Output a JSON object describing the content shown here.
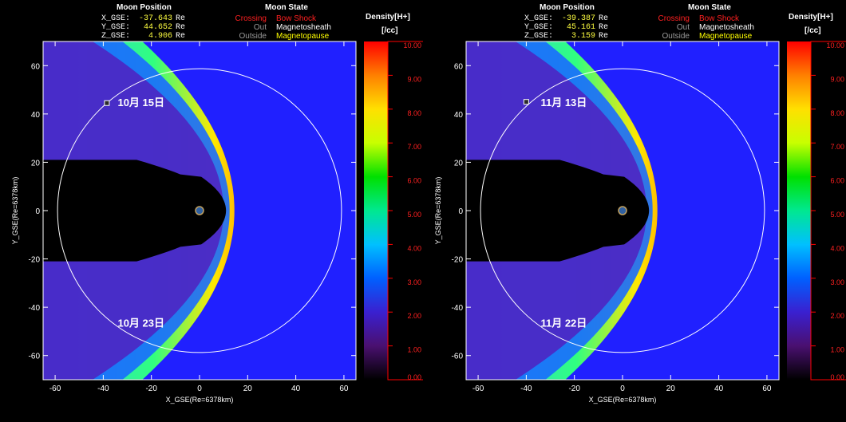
{
  "panels": [
    {
      "header": {
        "moon_position_title": "Moon Position",
        "moon_state_title": "Moon State",
        "density_title": "Density[H+]",
        "density_unit": "[/cc]",
        "x_label": "X_GSE:",
        "x_value": "-37.643",
        "x_unit": "Re",
        "y_label": "Y_GSE:",
        "y_value": "44.652",
        "y_unit": "Re",
        "z_label": "Z_GSE:",
        "z_value": "4.906",
        "z_unit": "Re",
        "state_rows": [
          {
            "key": "Crossing",
            "value": "Bow Shock",
            "key_color": "#ff2020",
            "value_color": "#ff2020"
          },
          {
            "key": "Out",
            "value": "Magnetosheath",
            "key_color": "#9a9a9a",
            "value_color": "#ffffff"
          },
          {
            "key": "Outside",
            "value": "Magnetopause",
            "key_color": "#9a9a9a",
            "value_color": "#ffff00"
          }
        ]
      },
      "annotations": {
        "upper": "10月 15日",
        "lower": "10月 23日"
      },
      "moon_marker": {
        "x": -38.5,
        "y": 44.5
      }
    },
    {
      "header": {
        "moon_position_title": "Moon Position",
        "moon_state_title": "Moon State",
        "density_title": "Density[H+]",
        "density_unit": "[/cc]",
        "x_label": "X_GSE:",
        "x_value": "-39.387",
        "x_unit": "Re",
        "y_label": "Y_GSE:",
        "y_value": "45.161",
        "y_unit": "Re",
        "z_label": "Z_GSE:",
        "z_value": "3.159",
        "z_unit": "Re",
        "state_rows": [
          {
            "key": "Crossing",
            "value": "Bow Shock",
            "key_color": "#ff2020",
            "value_color": "#ff2020"
          },
          {
            "key": "Out",
            "value": "Magnetosheath",
            "key_color": "#9a9a9a",
            "value_color": "#ffffff"
          },
          {
            "key": "Outside",
            "value": "Magnetopause",
            "key_color": "#9a9a9a",
            "value_color": "#ffff00"
          }
        ]
      },
      "annotations": {
        "upper": "11月 13日",
        "lower": "11月 22日"
      },
      "moon_marker": {
        "x": -40,
        "y": 45
      }
    }
  ],
  "chart_data": {
    "type": "heatmap",
    "xlabel": "X_GSE(Re=6378km)",
    "ylabel": "Y_GSE(Re=6378km)",
    "xlim": [
      -65,
      65
    ],
    "ylim": [
      -70,
      70
    ],
    "xticks": [
      -60,
      -40,
      -20,
      0,
      20,
      40,
      60
    ],
    "yticks": [
      -60,
      -40,
      -20,
      0,
      20,
      40,
      60
    ],
    "colorbar": {
      "title": "Density[H+]",
      "unit": "[/cc]",
      "range": [
        0,
        10
      ],
      "ticks": [
        "0.00",
        "1.00",
        "2.00",
        "3.00",
        "4.00",
        "5.00",
        "6.00",
        "7.00",
        "8.00",
        "9.00",
        "10.00"
      ]
    },
    "lunar_orbit_radius": 59,
    "background_color": "#2020ff"
  }
}
